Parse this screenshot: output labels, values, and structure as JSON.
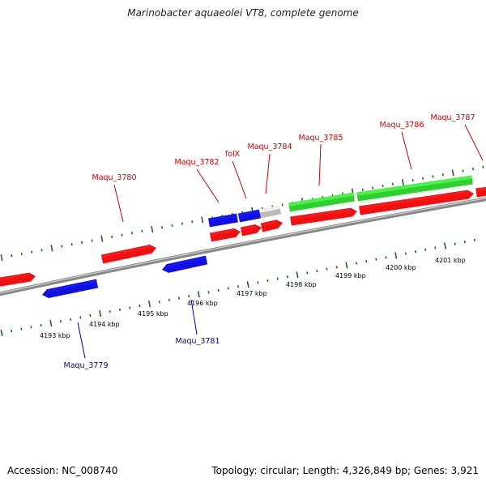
{
  "title": "Marinobacter aquaeolei VT8, complete genome",
  "footer": {
    "accession": "Accession: NC_008740",
    "summary": "Topology: circular; Length: 4,326,849 bp; Genes: 3,921"
  },
  "colors": {
    "forward_gene": "#ee1111",
    "reverse_gene": "#1111dd",
    "rna_gene": "#33cc33",
    "other_gene": "#bbbbbb",
    "backbone": "#888888",
    "ticks": "#226622",
    "forward_label": "#cc0000",
    "reverse_label": "#0000aa"
  },
  "axis": {
    "tick_labels": [
      "4193 kbp",
      "4194 kbp",
      "4195 kbp",
      "4196 kbp",
      "4197 kbp",
      "4198 kbp",
      "4199 kbp",
      "4200 kbp",
      "4201 kbp"
    ]
  },
  "genes": [
    {
      "label": "Maqu_3779",
      "strand": "reverse",
      "kind": "protein"
    },
    {
      "label": "Maqu_3780",
      "strand": "forward",
      "kind": "protein"
    },
    {
      "label": "Maqu_3781",
      "strand": "reverse",
      "kind": "protein"
    },
    {
      "label": "Maqu_3782",
      "strand": "forward",
      "kind": "protein"
    },
    {
      "label": "folX",
      "strand": "forward",
      "kind": "protein"
    },
    {
      "label": "Maqu_3784",
      "strand": "forward",
      "kind": "protein"
    },
    {
      "label": "Maqu_3785",
      "strand": "forward",
      "kind": "protein"
    },
    {
      "label": "Maqu_3786",
      "strand": "forward",
      "kind": "protein"
    },
    {
      "label": "Maqu_3787",
      "strand": "forward",
      "kind": "protein"
    }
  ]
}
